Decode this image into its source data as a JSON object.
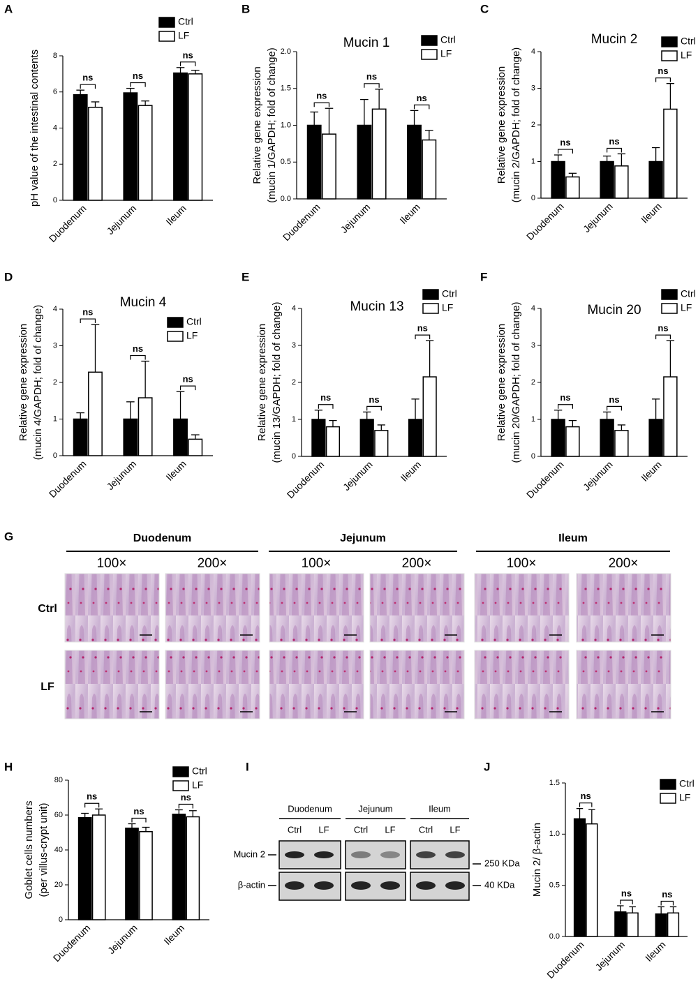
{
  "chart_data": [
    {
      "type": "bar",
      "label": "A",
      "ylabel": [
        "pH value of the intestinal contents"
      ],
      "categories": [
        "Duodenum",
        "Jejunum",
        "Ileum"
      ],
      "series": [
        {
          "name": "Ctrl",
          "color": "#000000",
          "values": [
            5.85,
            5.95,
            7.05
          ],
          "errors": [
            0.25,
            0.25,
            0.3
          ]
        },
        {
          "name": "LF",
          "color": "#ffffff",
          "values": [
            5.15,
            5.25,
            7.0
          ],
          "errors": [
            0.3,
            0.25,
            0.2
          ]
        }
      ],
      "annotations": [
        "ns",
        "ns",
        "ns"
      ],
      "ylim": [
        0,
        8
      ],
      "yticks": [
        0,
        2,
        4,
        6,
        8
      ]
    },
    {
      "type": "bar",
      "label": "B",
      "title": "Mucin 1",
      "ylabel": [
        "Relative gene expression",
        "(mucin 1/GAPDH; fold of change)"
      ],
      "categories": [
        "Duodenum",
        "Jejunum",
        "Ileum"
      ],
      "series": [
        {
          "name": "Ctrl",
          "color": "#000000",
          "values": [
            1.0,
            1.0,
            1.0
          ],
          "errors": [
            0.18,
            0.35,
            0.2
          ]
        },
        {
          "name": "LF",
          "color": "#ffffff",
          "values": [
            0.88,
            1.22,
            0.8
          ],
          "errors": [
            0.35,
            0.27,
            0.13
          ]
        }
      ],
      "annotations": [
        "ns",
        "ns",
        "ns"
      ],
      "ylim": [
        0,
        2
      ],
      "yticks": [
        {
          "value": 0,
          "label": "0.0"
        },
        {
          "value": 0.5,
          "label": "0.5"
        },
        {
          "value": 1,
          "label": "1.0"
        },
        {
          "value": 1.5,
          "label": "1.5"
        },
        {
          "value": 2,
          "label": "2.0"
        }
      ]
    },
    {
      "type": "bar",
      "label": "C",
      "title": "Mucin 2",
      "ylabel": [
        "Relative gene expression",
        "(mucin 2/GAPDH; fold of change)"
      ],
      "categories": [
        "Duodenum",
        "Jejunum",
        "Ileum"
      ],
      "series": [
        {
          "name": "Ctrl",
          "color": "#000000",
          "values": [
            1.0,
            1.0,
            1.0
          ],
          "errors": [
            0.18,
            0.15,
            0.38
          ]
        },
        {
          "name": "LF",
          "color": "#ffffff",
          "values": [
            0.58,
            0.88,
            2.43
          ],
          "errors": [
            0.1,
            0.33,
            0.7
          ]
        }
      ],
      "annotations": [
        "ns",
        "ns",
        "ns"
      ],
      "ylim": [
        0,
        4
      ],
      "yticks": [
        0,
        1,
        2,
        3,
        4
      ]
    },
    {
      "type": "bar",
      "label": "D",
      "title": "Mucin 4",
      "ylabel": [
        "Relative gene expression",
        "(mucin 4/GAPDH; fold of change)"
      ],
      "categories": [
        "Duodenum",
        "Jejunum",
        "Ileum"
      ],
      "series": [
        {
          "name": "Ctrl",
          "color": "#000000",
          "values": [
            1.0,
            1.0,
            1.0
          ],
          "errors": [
            0.17,
            0.47,
            0.75
          ]
        },
        {
          "name": "LF",
          "color": "#ffffff",
          "values": [
            2.28,
            1.58,
            0.45
          ],
          "errors": [
            1.3,
            1.0,
            0.12
          ]
        }
      ],
      "annotations": [
        "ns",
        "ns",
        "ns"
      ],
      "ylim": [
        0,
        4
      ],
      "yticks": [
        0,
        1,
        2,
        3,
        4
      ]
    },
    {
      "type": "bar",
      "label": "E",
      "title": "Mucin 13",
      "ylabel": [
        "Relative gene expression",
        "(mucin 13/GAPDH; fold of change)"
      ],
      "categories": [
        "Duodenum",
        "Jejunum",
        "Ileum"
      ],
      "series": [
        {
          "name": "Ctrl",
          "color": "#000000",
          "values": [
            1.0,
            1.0,
            1.0
          ],
          "errors": [
            0.25,
            0.2,
            0.55
          ]
        },
        {
          "name": "LF",
          "color": "#ffffff",
          "values": [
            0.8,
            0.7,
            2.15
          ],
          "errors": [
            0.17,
            0.15,
            0.98
          ]
        }
      ],
      "annotations": [
        "ns",
        "ns",
        "ns"
      ],
      "ylim": [
        0,
        4
      ],
      "yticks": [
        0,
        1,
        2,
        3,
        4
      ]
    },
    {
      "type": "bar",
      "label": "F",
      "title": "Mucin 20",
      "ylabel": [
        "Relative gene expression",
        "(mucin 20/GAPDH; fold of change)"
      ],
      "categories": [
        "Duodenum",
        "Jejunum",
        "Ileum"
      ],
      "series": [
        {
          "name": "Ctrl",
          "color": "#000000",
          "values": [
            1.0,
            1.0,
            1.0
          ],
          "errors": [
            0.25,
            0.2,
            0.55
          ]
        },
        {
          "name": "LF",
          "color": "#ffffff",
          "values": [
            0.8,
            0.7,
            2.15
          ],
          "errors": [
            0.17,
            0.15,
            0.98
          ]
        }
      ],
      "annotations": [
        "ns",
        "ns",
        "ns"
      ],
      "ylim": [
        0,
        4
      ],
      "yticks": [
        0,
        1,
        2,
        3,
        4
      ]
    },
    {
      "type": "bar",
      "label": "H",
      "ylabel": [
        "Goblet cells numbers",
        "(per villus-crypt unit)"
      ],
      "categories": [
        "Duodenum",
        "Jejunum",
        "Ileum"
      ],
      "series": [
        {
          "name": "Ctrl",
          "color": "#000000",
          "values": [
            58.5,
            52.5,
            60.5
          ],
          "errors": [
            2.5,
            2.5,
            2.5
          ]
        },
        {
          "name": "LF",
          "color": "#ffffff",
          "values": [
            60,
            50.5,
            59
          ],
          "errors": [
            3.5,
            2.5,
            3.5
          ]
        }
      ],
      "annotations": [
        "ns",
        "ns",
        "ns"
      ],
      "ylim": [
        0,
        80
      ],
      "yticks": [
        0,
        20,
        40,
        60,
        80
      ]
    },
    {
      "type": "bar",
      "label": "J",
      "ylabel": [
        "Mucin 2/ β-actin"
      ],
      "categories": [
        "Duodenum",
        "Jejunum",
        "Ileum"
      ],
      "series": [
        {
          "name": "Ctrl",
          "color": "#000000",
          "values": [
            1.15,
            0.24,
            0.22
          ],
          "errors": [
            0.1,
            0.06,
            0.07
          ]
        },
        {
          "name": "LF",
          "color": "#ffffff",
          "values": [
            1.1,
            0.23,
            0.23
          ],
          "errors": [
            0.14,
            0.06,
            0.06
          ]
        }
      ],
      "annotations": [
        "ns",
        "ns",
        "ns"
      ],
      "ylim": [
        0,
        1.5
      ],
      "yticks": [
        {
          "value": 0,
          "label": "0.0"
        },
        {
          "value": 0.5,
          "label": "0.5"
        },
        {
          "value": 1,
          "label": "1.0"
        },
        {
          "value": 1.5,
          "label": "1.5"
        }
      ]
    }
  ],
  "histology": {
    "label": "G",
    "segments": [
      "Duodenum",
      "Jejunum",
      "Ileum"
    ],
    "magnifications": [
      "100×",
      "200×"
    ],
    "rows": [
      "Ctrl",
      "LF"
    ]
  },
  "western_blot": {
    "label": "I",
    "segments": [
      "Duodenum",
      "Jejunum",
      "Ileum"
    ],
    "lanes": [
      "Ctrl",
      "LF"
    ],
    "proteins": [
      "Mucin 2",
      "β-actin"
    ],
    "sizes": [
      "250 KDa",
      "40 KDa"
    ]
  }
}
